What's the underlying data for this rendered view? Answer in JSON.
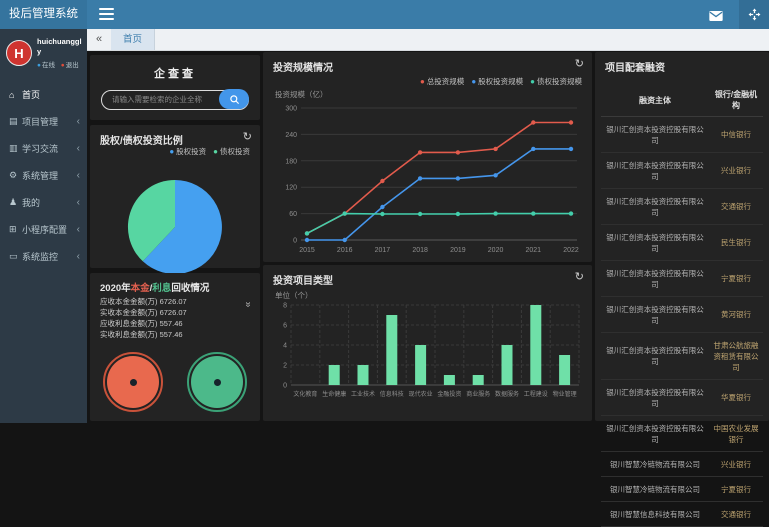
{
  "app_title": "投后管理系统",
  "glyphs": {
    "tab_collapse": "«",
    "menu_expand_chevron": "‹",
    "refresh": "↻",
    "panel_collapse_double_down": "»",
    "legend_dot": "●"
  },
  "colors": {
    "topbar": "#3a7ca8",
    "sidebar": "#2d3a46",
    "panel_bg": "#232323",
    "blue": "#4596ec",
    "green": "#57d6a2",
    "red": "#e25b4c",
    "bar_green": "#6fe0a8"
  },
  "sidebar": {
    "user": {
      "name": "huichuanggly",
      "avatar_letter": "H",
      "online_label": "在线",
      "logout_label": "退出"
    },
    "items": [
      {
        "label": "首页",
        "icon": "home-icon",
        "expandable": false
      },
      {
        "label": "项目管理",
        "icon": "folder-icon",
        "expandable": true
      },
      {
        "label": "学习交流",
        "icon": "book-icon",
        "expandable": true
      },
      {
        "label": "系统管理",
        "icon": "gear-icon",
        "expandable": true
      },
      {
        "label": "我的",
        "icon": "user-icon",
        "expandable": true
      },
      {
        "label": "小程序配置",
        "icon": "miniapp-icon",
        "expandable": true
      },
      {
        "label": "系统监控",
        "icon": "monitor-icon",
        "expandable": true
      }
    ]
  },
  "tabbar": {
    "active_tab": "首页"
  },
  "panels": {
    "qichacha": {
      "title": "企查查",
      "search_placeholder": "请输入需要检索的企业全称"
    },
    "pie": {
      "title": "股权/债权投资比例"
    },
    "recovery": {
      "title_parts": [
        {
          "text": "2020年",
          "color": "#e8e8e8"
        },
        {
          "text": "本金",
          "color": "#e2604f"
        },
        {
          "text": "/",
          "color": "#e8e8e8"
        },
        {
          "text": "利息",
          "color": "#52c08e"
        },
        {
          "text": "回收情况",
          "color": "#e8e8e8"
        }
      ],
      "rows": [
        {
          "label": "应收本金金额(万)",
          "value": "6726.07"
        },
        {
          "label": "实收本金金额(万)",
          "value": "6726.07"
        },
        {
          "label": "应收利息金额(万)",
          "value": "557.46"
        },
        {
          "label": "实收利息金额(万)",
          "value": "557.46"
        }
      ],
      "gauges": [
        {
          "name": "principal-gauge",
          "fill": "#e8694e",
          "ring": "#c9523a"
        },
        {
          "name": "interest-gauge",
          "fill": "#4cb98a",
          "ring": "#3ba277"
        }
      ]
    },
    "scale": {
      "title": "投资规模情况",
      "ylabel": "投资规模（亿）"
    },
    "types": {
      "title": "投资项目类型",
      "ylabel": "单位（个）"
    },
    "financing": {
      "title": "项目配套融资",
      "headers": [
        "融资主体",
        "银行/金融机构"
      ],
      "rows": [
        [
          "银川汇创资本投资控股有限公司",
          "中信银行"
        ],
        [
          "银川汇创资本投资控股有限公司",
          "兴业银行"
        ],
        [
          "银川汇创资本投资控股有限公司",
          "交通银行"
        ],
        [
          "银川汇创资本投资控股有限公司",
          "民生银行"
        ],
        [
          "银川汇创资本投资控股有限公司",
          "宁夏银行"
        ],
        [
          "银川汇创资本投资控股有限公司",
          "黄河银行"
        ],
        [
          "银川汇创资本投资控股有限公司",
          "甘肃公航旅融资租赁有限公司"
        ],
        [
          "银川汇创资本投资控股有限公司",
          "华夏银行"
        ],
        [
          "银川汇创资本投资控股有限公司",
          "中国农业发展银行"
        ],
        [
          "银川智慧冷链物流有限公司",
          "兴业银行"
        ],
        [
          "银川智慧冷链物流有限公司",
          "宁夏银行"
        ],
        [
          "银川智慧信息科技有限公司",
          "交通银行"
        ]
      ]
    }
  },
  "chart_data": [
    {
      "type": "pie",
      "title": "股权/债权投资比例",
      "legend_position": "top-right",
      "series": [
        {
          "name": "股权投资",
          "value": 62,
          "color": "#45a0f0"
        },
        {
          "name": "债权投资",
          "value": 38,
          "color": "#57d6a2"
        }
      ]
    },
    {
      "type": "line",
      "title": "投资规模情况",
      "ylabel": "投资规模（亿）",
      "ylim": [
        0,
        300
      ],
      "yticks": [
        0,
        60,
        120,
        180,
        240,
        300
      ],
      "x": [
        "2015",
        "2016",
        "2017",
        "2018",
        "2019",
        "2020",
        "2021",
        "2022"
      ],
      "legend_position": "top-right",
      "grid": true,
      "series": [
        {
          "name": "总投资规模",
          "color": "#e25b4c",
          "values": [
            15,
            60,
            134,
            199,
            199,
            207,
            267,
            267
          ]
        },
        {
          "name": "股权投资规模",
          "color": "#4596ec",
          "values": [
            0,
            0,
            75,
            140,
            140,
            147,
            207,
            207
          ]
        },
        {
          "name": "债权投资规模",
          "color": "#43ceab",
          "values": [
            15,
            60,
            59,
            59,
            59,
            60,
            60,
            60
          ]
        }
      ]
    },
    {
      "type": "bar",
      "title": "投资项目类型",
      "ylabel": "单位（个）",
      "ylim": [
        0,
        8
      ],
      "yticks": [
        0,
        2,
        4,
        6,
        8
      ],
      "grid": "dashed",
      "bar_color": "#6fe0a8",
      "categories": [
        "文化教育",
        "生命健康",
        "工业技术",
        "信息科技",
        "现代农业",
        "金融投资",
        "商业服务",
        "数据服务",
        "工程建设",
        "物业管理"
      ],
      "values": [
        0,
        2,
        2,
        7,
        4,
        1,
        1,
        4,
        8,
        3
      ]
    }
  ]
}
